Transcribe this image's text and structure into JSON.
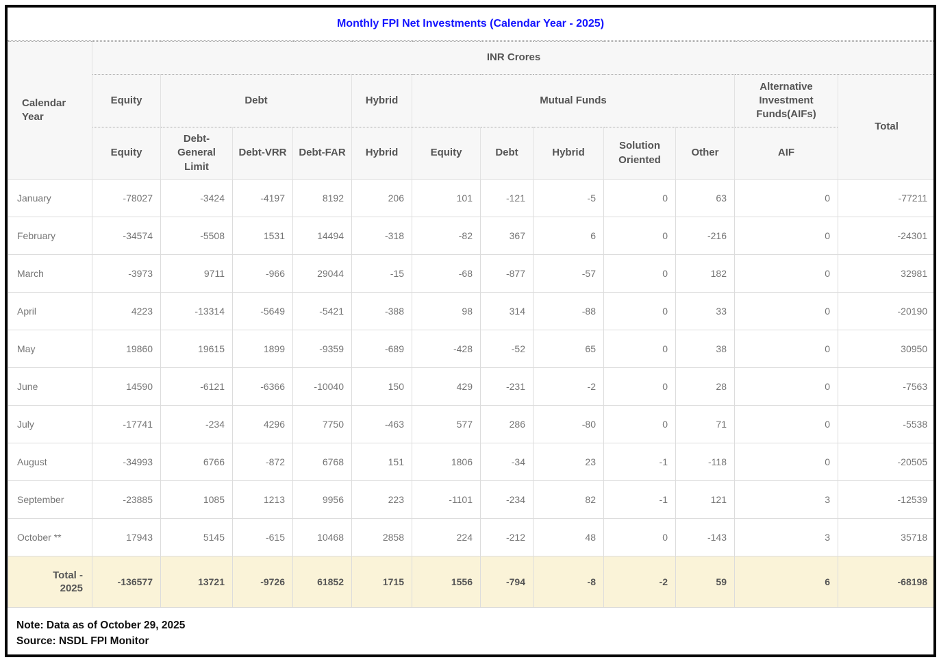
{
  "title": "Monthly FPI Net Investments (Calendar Year - 2025)",
  "table": {
    "unit": "INR Crores",
    "corner_label": "Calendar Year",
    "groups": [
      {
        "label": "Equity",
        "colspan": 1
      },
      {
        "label": "Debt",
        "colspan": 3
      },
      {
        "label": "Hybrid",
        "colspan": 1
      },
      {
        "label": "Mutual Funds",
        "colspan": 5
      },
      {
        "label": "Alternative Investment Funds(AIFs)",
        "colspan": 1
      }
    ],
    "total_label": "Total",
    "subheaders": [
      "Equity",
      "Debt-General Limit",
      "Debt-VRR",
      "Debt-FAR",
      "Hybrid",
      "Equity",
      "Debt",
      "Hybrid",
      "Solution Oriented",
      "Other",
      "AIF"
    ],
    "rows": [
      {
        "label": "January",
        "values": [
          -78027,
          -3424,
          -4197,
          8192,
          206,
          101,
          -121,
          -5,
          0,
          63,
          0,
          -77211
        ]
      },
      {
        "label": "February",
        "values": [
          -34574,
          -5508,
          1531,
          14494,
          -318,
          -82,
          367,
          6,
          0,
          -216,
          0,
          -24301
        ]
      },
      {
        "label": "March",
        "values": [
          -3973,
          9711,
          -966,
          29044,
          -15,
          -68,
          -877,
          -57,
          0,
          182,
          0,
          32981
        ]
      },
      {
        "label": "April",
        "values": [
          4223,
          -13314,
          -5649,
          -5421,
          -388,
          98,
          314,
          -88,
          0,
          33,
          0,
          -20190
        ]
      },
      {
        "label": "May",
        "values": [
          19860,
          19615,
          1899,
          -9359,
          -689,
          -428,
          -52,
          65,
          0,
          38,
          0,
          30950
        ]
      },
      {
        "label": "June",
        "values": [
          14590,
          -6121,
          -6366,
          -10040,
          150,
          429,
          -231,
          -2,
          0,
          28,
          0,
          -7563
        ]
      },
      {
        "label": "July",
        "values": [
          -17741,
          -234,
          4296,
          7750,
          -463,
          577,
          286,
          -80,
          0,
          71,
          0,
          -5538
        ]
      },
      {
        "label": "August",
        "values": [
          -34993,
          6766,
          -872,
          6768,
          151,
          1806,
          -34,
          23,
          -1,
          -118,
          0,
          -20505
        ]
      },
      {
        "label": "September",
        "values": [
          -23885,
          1085,
          1213,
          9956,
          223,
          -1101,
          -234,
          82,
          -1,
          121,
          3,
          -12539
        ]
      },
      {
        "label": "October **",
        "values": [
          17943,
          5145,
          -615,
          10468,
          2858,
          224,
          -212,
          48,
          0,
          -143,
          3,
          35718
        ]
      }
    ],
    "total_row": {
      "label": "Total -\n2025",
      "values": [
        -136577,
        13721,
        -9726,
        61852,
        1715,
        1556,
        -794,
        -8,
        -2,
        59,
        6,
        -68198
      ]
    }
  },
  "notes": [
    "Note: Data as of October 29, 2025",
    "Source: NSDL FPI Monitor"
  ],
  "colors": {
    "title_blue": "#1414ff",
    "total_row_bg": "#faf3d8",
    "header_bg": "#f7f7f7",
    "header_text": "#555555",
    "data_text": "#757575"
  }
}
